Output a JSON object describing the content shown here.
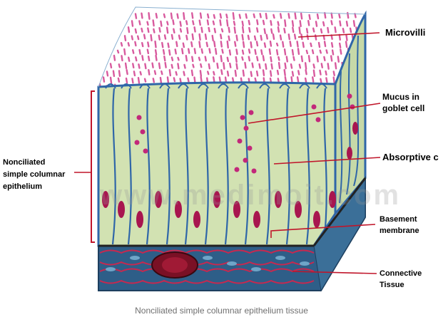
{
  "labels": {
    "microvilli": "Microvilli",
    "mucus_line1": "Mucus in",
    "mucus_line2": "goblet cell",
    "absorptive": "Absorptive c",
    "nonciliated_line1": "Nonciliated",
    "nonciliated_line2": "simple columnar",
    "nonciliated_line3": "epithelium",
    "basement_line1": "Basement",
    "basement_line2": "membrane",
    "connective_line1": "Connective",
    "connective_line2": "Tissue"
  },
  "watermark": "www.medimoit.com",
  "caption": "Nonciliated simple columnar epithelium tissue",
  "colors": {
    "microvilli": "#d85a9e",
    "cytoplasm": "#cfe0b0",
    "cell_border": "#2f66a8",
    "nucleus": "#a8164f",
    "connective_bg": "#2e5e88",
    "fiber": "#c8284f",
    "pointer": "#c0152a"
  }
}
